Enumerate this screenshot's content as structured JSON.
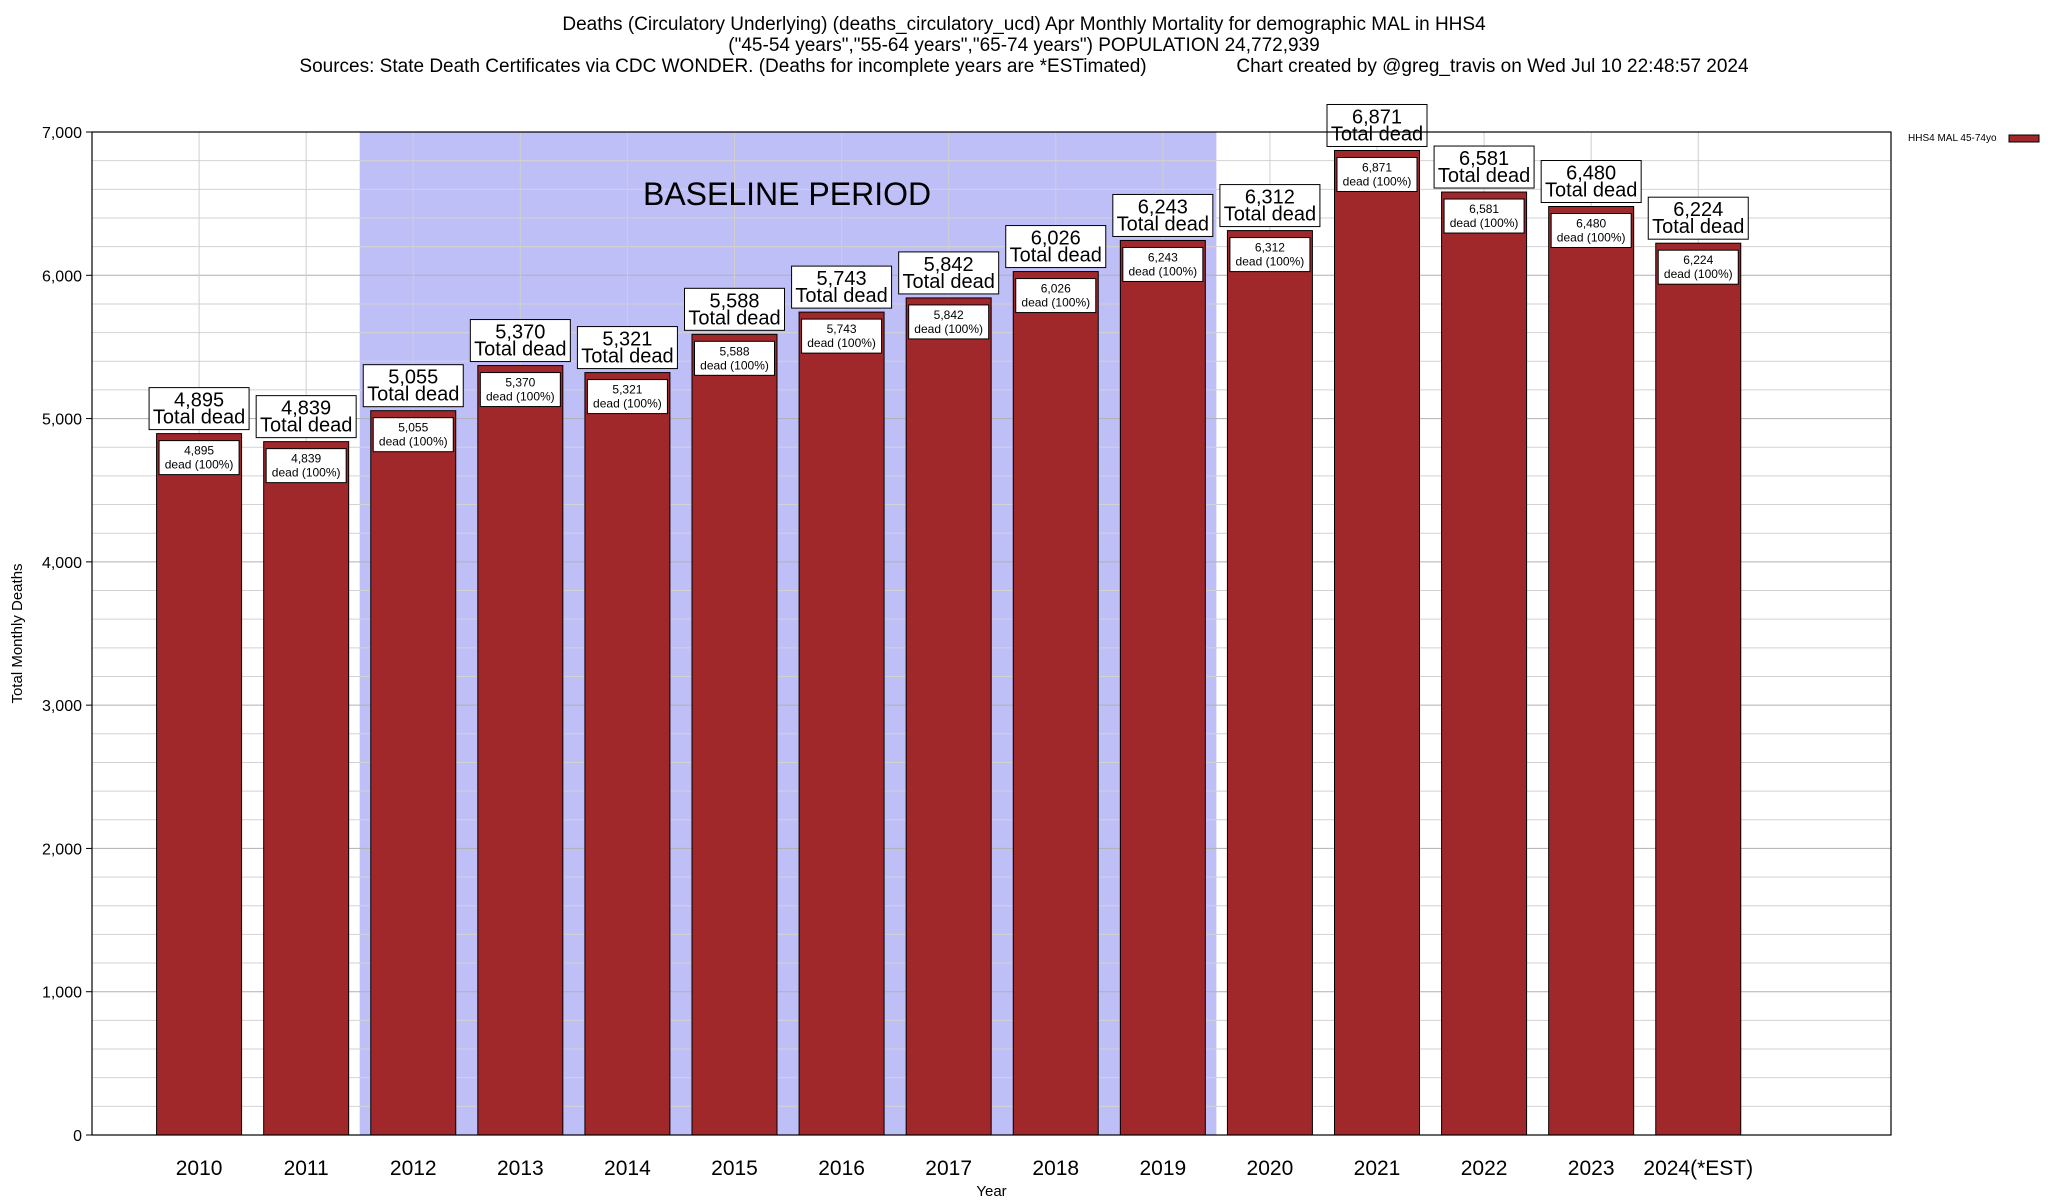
{
  "header": {
    "title_line1": "Deaths (Circulatory Underlying) (deaths_circulatory_ucd) Apr Monthly Mortality for demographic MAL in HHS4",
    "title_line2": "(\"45-54 years\",\"55-64 years\",\"65-74 years\") POPULATION 24,772,939",
    "title_line3": "Sources: State Death Certificates via CDC WONDER. (Deaths for incomplete years are *ESTimated)                 Chart created by @greg_travis on Wed Jul 10 22:48:57 2024"
  },
  "chart_data": {
    "type": "bar",
    "xlabel": "Year",
    "ylabel": "Total Monthly Deaths",
    "ylim": [
      0,
      7000
    ],
    "yticks": [
      0,
      1000,
      2000,
      3000,
      4000,
      5000,
      6000,
      7000
    ],
    "ytick_labels": [
      "0",
      "1,000",
      "2,000",
      "3,000",
      "4,000",
      "5,000",
      "6,000",
      "7,000"
    ],
    "categories": [
      "2010",
      "2011",
      "2012",
      "2013",
      "2014",
      "2015",
      "2016",
      "2017",
      "2018",
      "2019",
      "2020",
      "2021",
      "2022",
      "2023",
      "2024(*EST)"
    ],
    "series": [
      {
        "name": "HHS4 MAL 45-74yo",
        "color": "#a0282a",
        "values": [
          4895,
          4839,
          5055,
          5370,
          5321,
          5588,
          5743,
          5842,
          6026,
          6243,
          6312,
          6871,
          6581,
          6480,
          6224
        ]
      }
    ],
    "value_labels": [
      "4,895",
      "4,839",
      "5,055",
      "5,370",
      "5,321",
      "5,588",
      "5,743",
      "5,842",
      "6,026",
      "6,243",
      "6,312",
      "6,871",
      "6,581",
      "6,480",
      "6,224"
    ],
    "total_label_suffix": "Total dead",
    "inner_label_suffix": "dead (100%)",
    "baseline": {
      "label": "BASELINE PERIOD",
      "start": "2012",
      "end": "2019",
      "color": "#bfbff8"
    },
    "legend": {
      "position": "top-right"
    },
    "grid": true
  }
}
